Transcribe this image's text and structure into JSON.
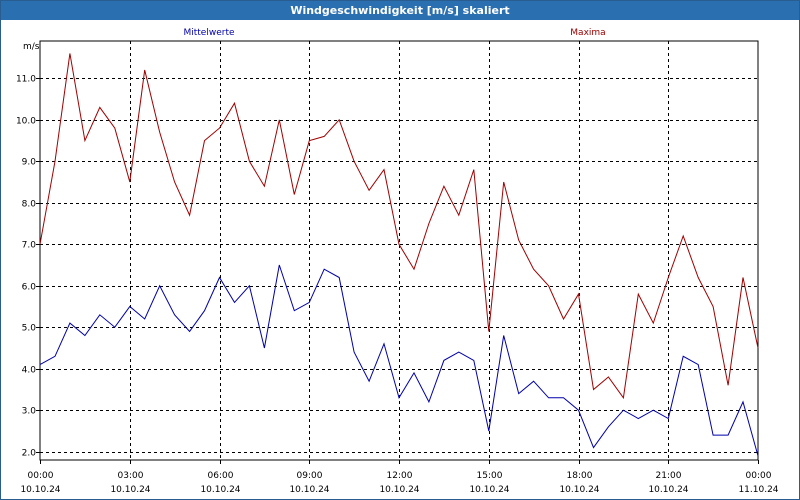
{
  "title": "Windgeschwindigkeit [m/s] skaliert",
  "colors": {
    "mean": "#0000aa",
    "max": "#a00000",
    "titlebar": "#2a6fb0",
    "grid": "#000000"
  },
  "chart_data": {
    "type": "line",
    "title": "Windgeschwindigkeit [m/s] skaliert",
    "ylabel": "m/s",
    "xlabel": "",
    "ylim": [
      1.8,
      11.9
    ],
    "xlim": [
      "2024-10-10T00:00",
      "2024-10-11T00:00"
    ],
    "grid": true,
    "legend_placement": "top",
    "y_ticks": [
      "2.0",
      "3.0",
      "4.0",
      "5.0",
      "6.0",
      "7.0",
      "8.0",
      "9.0",
      "10.0",
      "11.0"
    ],
    "x_ticks": [
      {
        "time": "00:00",
        "date": "10.10.24"
      },
      {
        "time": "03:00",
        "date": "10.10.24"
      },
      {
        "time": "06:00",
        "date": "10.10.24"
      },
      {
        "time": "09:00",
        "date": "10.10.24"
      },
      {
        "time": "12:00",
        "date": "10.10.24"
      },
      {
        "time": "15:00",
        "date": "10.10.24"
      },
      {
        "time": "18:00",
        "date": "10.10.24"
      },
      {
        "time": "21:00",
        "date": "10.10.24"
      },
      {
        "time": "00:00",
        "date": "11.10.24"
      }
    ],
    "x": [
      "00:00",
      "00:30",
      "01:00",
      "01:30",
      "02:00",
      "02:30",
      "03:00",
      "03:30",
      "04:00",
      "04:30",
      "05:00",
      "05:30",
      "06:00",
      "06:30",
      "07:00",
      "07:30",
      "08:00",
      "08:30",
      "09:00",
      "09:30",
      "10:00",
      "10:30",
      "11:00",
      "11:30",
      "12:00",
      "12:30",
      "13:00",
      "13:30",
      "14:00",
      "14:30",
      "15:00",
      "15:30",
      "16:00",
      "16:30",
      "17:00",
      "17:30",
      "18:00",
      "18:30",
      "19:00",
      "19:30",
      "20:00",
      "20:30",
      "21:00",
      "21:30",
      "22:00",
      "22:30",
      "23:00",
      "23:30",
      "24:00"
    ],
    "series": [
      {
        "name": "Mittelwerte",
        "color": "#0000aa",
        "values": [
          4.1,
          4.3,
          5.1,
          4.8,
          5.3,
          5.0,
          5.5,
          5.2,
          6.0,
          5.3,
          4.9,
          5.4,
          6.2,
          5.6,
          6.0,
          4.5,
          6.5,
          5.4,
          5.6,
          6.4,
          6.2,
          4.4,
          3.7,
          4.6,
          3.3,
          3.9,
          3.2,
          4.2,
          4.4,
          4.2,
          2.5,
          4.8,
          3.4,
          3.7,
          3.3,
          3.3,
          3.0,
          2.1,
          2.6,
          3.0,
          2.8,
          3.0,
          2.8,
          4.3,
          4.1,
          2.4,
          2.4,
          3.2,
          1.9
        ]
      },
      {
        "name": "Maxima",
        "color": "#a00000",
        "values": [
          7.0,
          9.0,
          11.6,
          9.5,
          10.3,
          9.8,
          8.5,
          11.2,
          9.7,
          8.5,
          7.7,
          9.5,
          9.8,
          10.4,
          9.0,
          8.4,
          10.0,
          8.2,
          9.5,
          9.6,
          10.0,
          9.0,
          8.3,
          8.8,
          7.0,
          6.4,
          7.5,
          8.4,
          7.7,
          8.8,
          4.9,
          8.5,
          7.1,
          6.4,
          6.0,
          5.2,
          5.8,
          3.5,
          3.8,
          3.3,
          5.8,
          5.1,
          6.2,
          7.2,
          6.2,
          5.5,
          3.6,
          6.2,
          4.5
        ]
      }
    ]
  }
}
